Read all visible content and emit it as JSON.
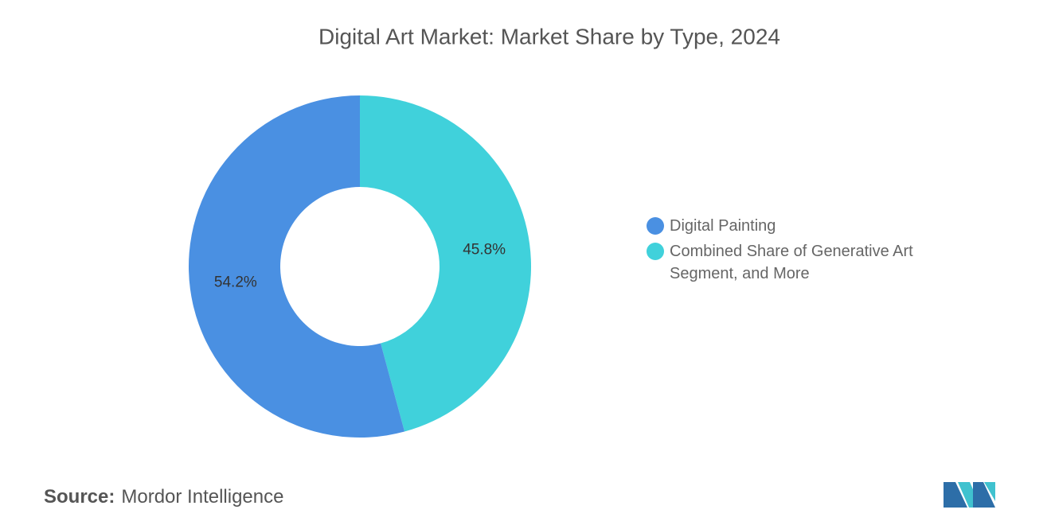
{
  "chart_data": {
    "type": "donut",
    "title": "Digital Art Market: Market Share by Type, 2024",
    "categories": [
      "Digital Painting",
      "Combined Share of Generative Art Segment, and More"
    ],
    "values": [
      54.2,
      45.8
    ],
    "value_labels": [
      "54.2%",
      "45.8%"
    ],
    "colors": [
      "#4a90e2",
      "#40d1db"
    ],
    "legend": "right"
  },
  "source": {
    "label": "Source:",
    "text": "Mordor Intelligence"
  }
}
